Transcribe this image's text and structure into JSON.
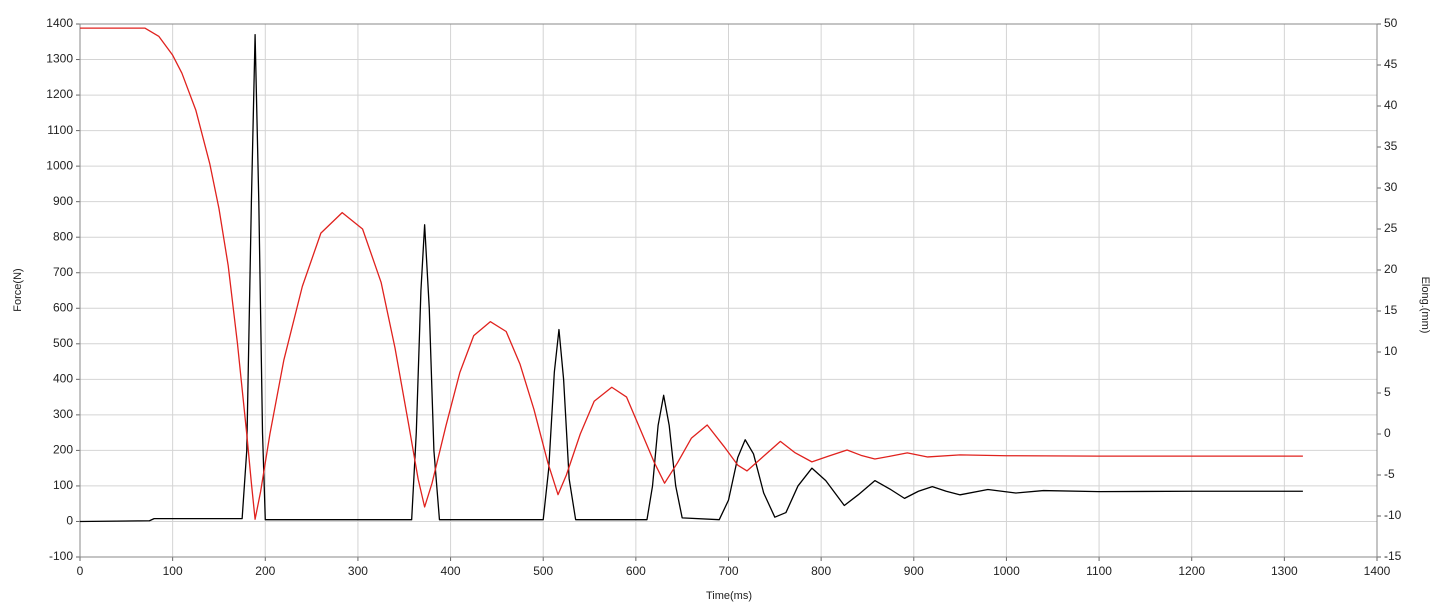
{
  "chart_data": {
    "type": "line",
    "xlabel": "Time(ms)",
    "ylabel": "Force(N)",
    "y2label": "Elong.(mm)",
    "xlim": [
      0,
      1400
    ],
    "xticks": [
      0,
      100,
      200,
      300,
      400,
      500,
      600,
      700,
      800,
      900,
      1000,
      1100,
      1200,
      1300,
      1400
    ],
    "ylim": [
      -100,
      1400
    ],
    "yticks": [
      -100,
      0,
      100,
      200,
      300,
      400,
      500,
      600,
      700,
      800,
      900,
      1000,
      1100,
      1200,
      1300,
      1400
    ],
    "y2lim": [
      -15,
      50
    ],
    "y2ticks": [
      -15,
      -10,
      -5,
      0,
      5,
      10,
      15,
      20,
      25,
      30,
      35,
      40,
      45,
      50
    ],
    "grid": true,
    "series": [
      {
        "color": "#000000",
        "axis": "y",
        "x": [
          0,
          75,
          80,
          150,
          175,
          180,
          185,
          189,
          193,
          197,
          200,
          358,
          363,
          368,
          372,
          377,
          382,
          388,
          500,
          506,
          512,
          517,
          522,
          528,
          535,
          612,
          618,
          624,
          630,
          636,
          643,
          650,
          690,
          700,
          710,
          718,
          727,
          738,
          750,
          762,
          775,
          790,
          805,
          825,
          840,
          858,
          875,
          890,
          905,
          920,
          935,
          950,
          980,
          1010,
          1040,
          1100,
          1200,
          1320
        ],
        "values": [
          0,
          2,
          8,
          8,
          8,
          200,
          900,
          1370,
          900,
          250,
          5,
          5,
          250,
          650,
          835,
          600,
          200,
          5,
          5,
          150,
          420,
          540,
          400,
          120,
          5,
          5,
          100,
          270,
          355,
          270,
          100,
          10,
          5,
          60,
          180,
          230,
          190,
          80,
          12,
          25,
          100,
          150,
          115,
          45,
          75,
          115,
          90,
          65,
          85,
          98,
          85,
          75,
          90,
          80,
          87,
          84,
          85,
          85
        ]
      },
      {
        "color": "#e0221e",
        "axis": "y2",
        "x": [
          0,
          70,
          85,
          100,
          110,
          125,
          140,
          150,
          160,
          170,
          180,
          185,
          189,
          195,
          205,
          220,
          240,
          260,
          283,
          305,
          325,
          340,
          355,
          365,
          372,
          380,
          395,
          410,
          425,
          443,
          460,
          475,
          490,
          505,
          516,
          525,
          540,
          555,
          574,
          590,
          605,
          620,
          631,
          645,
          660,
          677,
          695,
          710,
          720,
          735,
          756,
          772,
          790,
          808,
          828,
          843,
          858,
          875,
          893,
          915,
          950,
          1000,
          1100,
          1320
        ],
        "values": [
          49.5,
          49.5,
          48.5,
          46.2,
          44,
          39.5,
          33,
          27.5,
          20.5,
          11,
          0,
          -6,
          -10.4,
          -7,
          0,
          9,
          18,
          24.5,
          27,
          25,
          18.5,
          10.5,
          1,
          -5.5,
          -8.9,
          -6,
          1,
          7.5,
          12,
          13.7,
          12.5,
          8.5,
          3,
          -3.5,
          -7.4,
          -5,
          0,
          4,
          5.7,
          4.5,
          0.5,
          -3.5,
          -6,
          -3.5,
          -0.5,
          1.1,
          -1.5,
          -3.8,
          -4.5,
          -3,
          -0.9,
          -2.3,
          -3.4,
          -2.7,
          -1.95,
          -2.6,
          -3.05,
          -2.7,
          -2.3,
          -2.8,
          -2.55,
          -2.65,
          -2.7,
          -2.7
        ]
      }
    ]
  }
}
